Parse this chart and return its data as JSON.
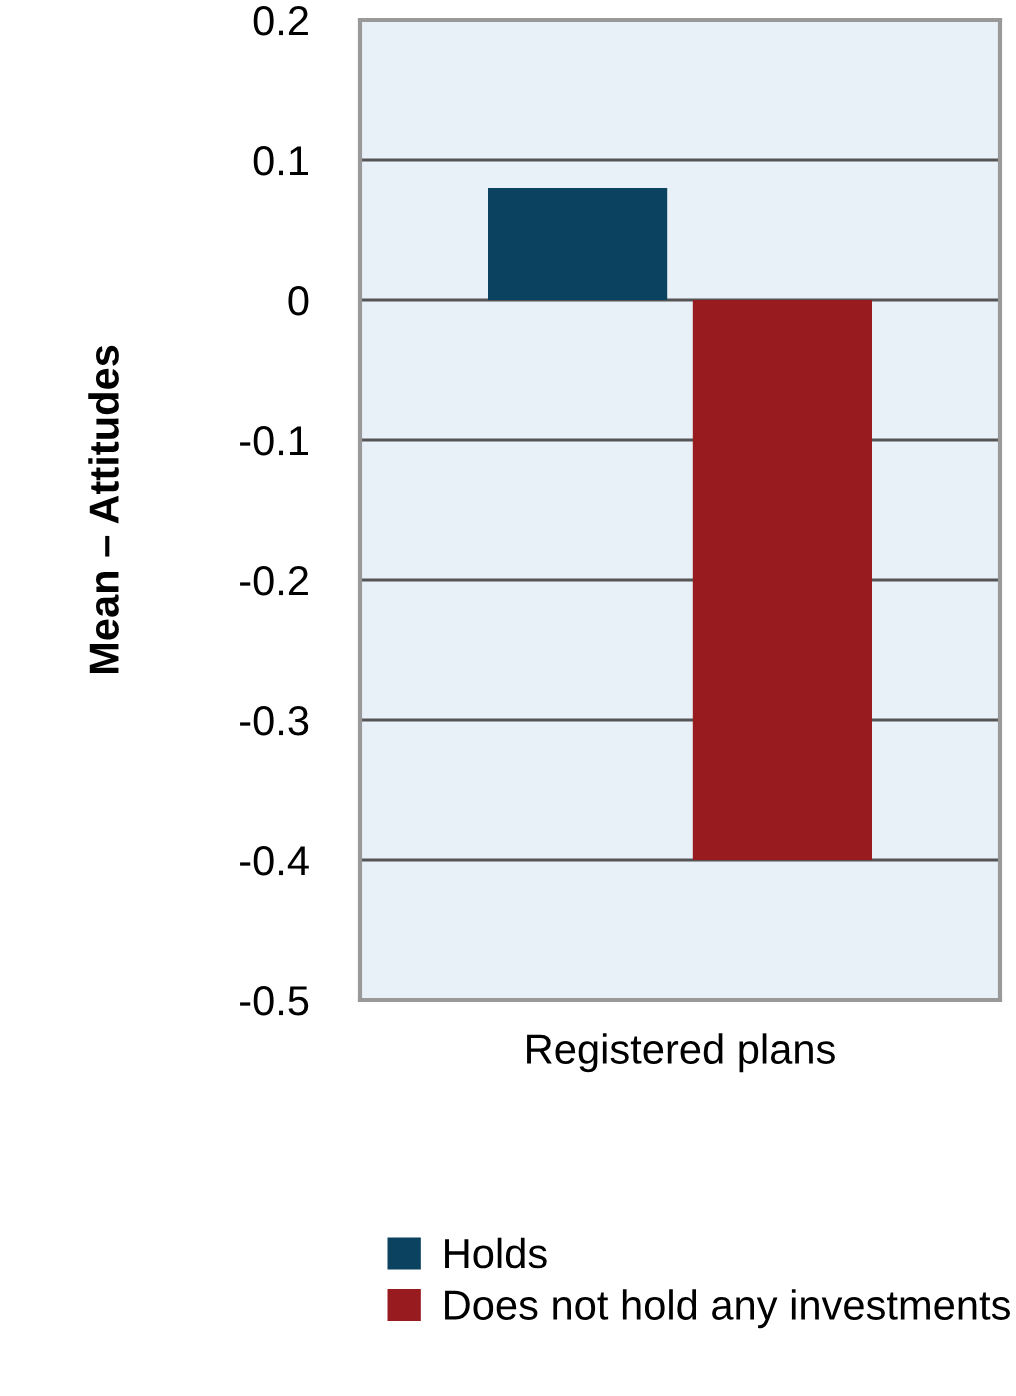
{
  "chart_data": {
    "type": "bar",
    "categories": [
      "Registered plans"
    ],
    "ylabel": "Mean – Attitudes",
    "series": [
      {
        "name": "Holds",
        "color": "#0b4260",
        "values": [
          0.08
        ]
      },
      {
        "name": "Does not hold any investments",
        "color": "#981b1f",
        "values": [
          -0.4
        ]
      }
    ],
    "ylim": [
      -0.5,
      0.2
    ],
    "yticks": [
      {
        "value": -0.5,
        "label": "-0.5"
      },
      {
        "value": -0.4,
        "label": "-0.4"
      },
      {
        "value": -0.3,
        "label": "-0.3"
      },
      {
        "value": -0.2,
        "label": "-0.2"
      },
      {
        "value": -0.1,
        "label": "-0.1"
      },
      0,
      0.1,
      0.2
    ],
    "grid": "y",
    "legend": "bottom"
  }
}
